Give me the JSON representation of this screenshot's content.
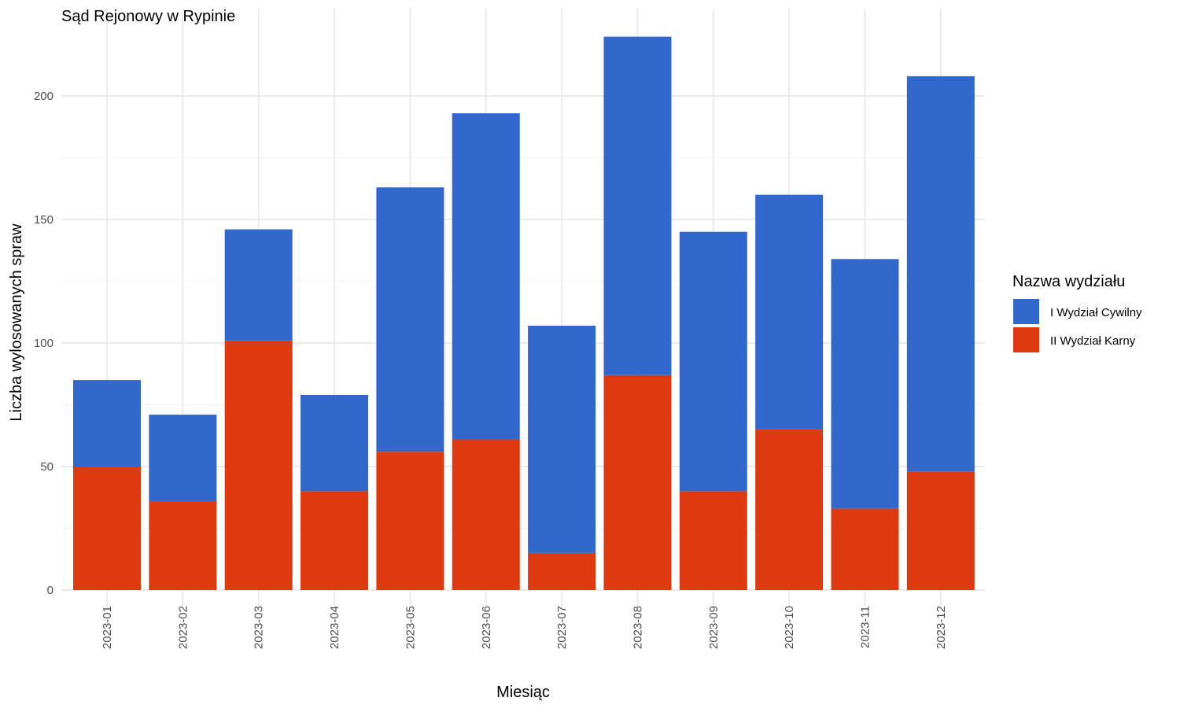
{
  "chart_data": {
    "type": "bar",
    "stacked": true,
    "title": "Sąd Rejonowy w Rypinie",
    "xlabel": "Miesiąc",
    "ylabel": "Liczba wylosowanych spraw",
    "ylim": [
      0,
      230
    ],
    "yticks": [
      0,
      50,
      100,
      150,
      200
    ],
    "grid": true,
    "legend_position": "right",
    "legend_title": "Nazwa wydziału",
    "categories": [
      "2023-01",
      "2023-02",
      "2023-03",
      "2023-04",
      "2023-05",
      "2023-06",
      "2023-07",
      "2023-08",
      "2023-09",
      "2023-10",
      "2023-11",
      "2023-12"
    ],
    "series": [
      {
        "name": "II Wydział Karny",
        "color": "#dd3a12",
        "values": [
          50,
          36,
          101,
          40,
          56,
          61,
          15,
          87,
          40,
          65,
          33,
          48
        ]
      },
      {
        "name": "I Wydział Cywilny",
        "color": "#3268cc",
        "values": [
          35,
          35,
          45,
          39,
          107,
          132,
          92,
          137,
          105,
          95,
          101,
          160
        ]
      }
    ],
    "legend_order": [
      "I Wydział Cywilny",
      "II Wydział Karny"
    ]
  }
}
